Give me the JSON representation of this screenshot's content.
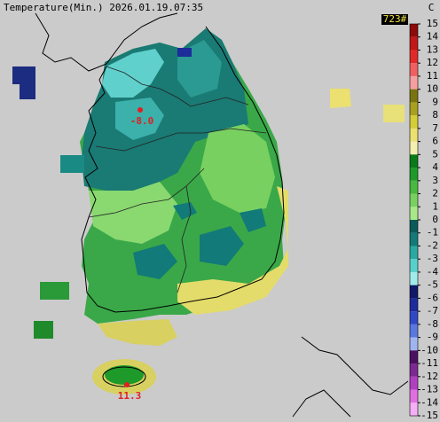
{
  "header": {
    "title": "Temperature(Min.) 2026.01.19.07:35",
    "count": "723#",
    "unit": "C"
  },
  "legend": {
    "levels": [
      15,
      14,
      13,
      12,
      11,
      10,
      9,
      8,
      7,
      6,
      5,
      4,
      3,
      2,
      1,
      0,
      -1,
      -2,
      -3,
      -4,
      -5,
      -6,
      -7,
      -8,
      -9,
      -10,
      -11,
      -12,
      -13,
      -14,
      -15
    ],
    "colors": [
      "#8c0a0a",
      "#c01818",
      "#e02a2a",
      "#f06060",
      "#f4a0a0",
      "#7a7410",
      "#a8a020",
      "#d4cc38",
      "#ece070",
      "#f4eeb0",
      "#0a7a1a",
      "#1e9a2a",
      "#48b840",
      "#78d060",
      "#a8e888",
      "#0a5a58",
      "#127a78",
      "#2aa8a4",
      "#58d0cc",
      "#a0ecea",
      "#101868",
      "#1c2c9a",
      "#3048c4",
      "#5878e0",
      "#a0b4f0",
      "#4a1060",
      "#7a2a90",
      "#b040c0",
      "#e070e0",
      "#f4b0f4"
    ]
  },
  "stations": [
    {
      "label": "-8.0"
    },
    {
      "label": "11.3"
    }
  ]
}
